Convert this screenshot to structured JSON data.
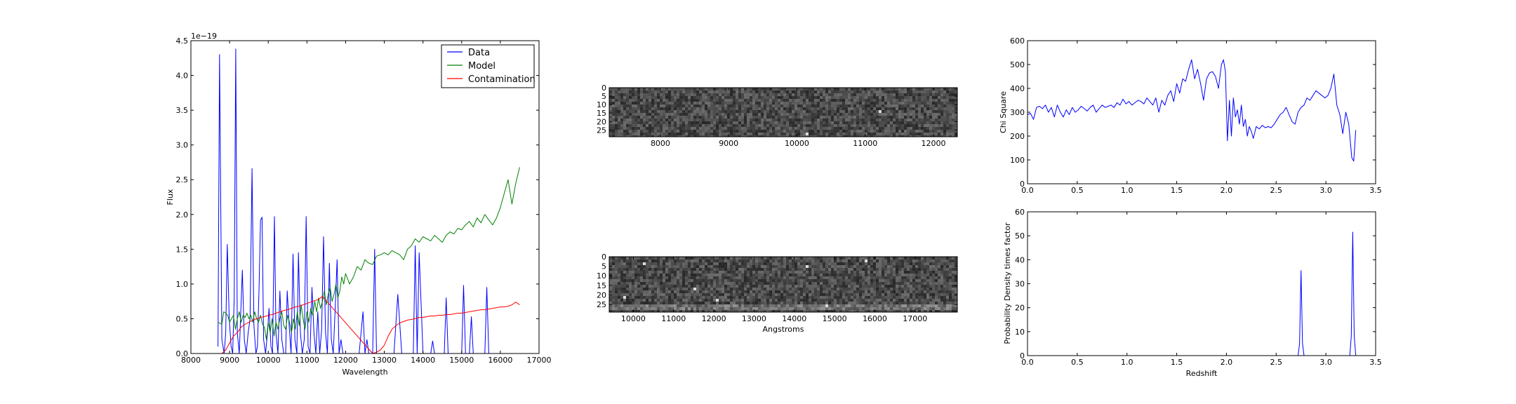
{
  "chart_data": [
    {
      "type": "line",
      "xlabel": "Wavelength",
      "ylabel": "Flux",
      "offset_text": "1e−19",
      "xlim": [
        8000,
        17000
      ],
      "ylim": [
        0,
        4.5
      ],
      "xticks": [
        "8000",
        "9000",
        "10000",
        "11000",
        "12000",
        "13000",
        "14000",
        "15000",
        "16000",
        "17000"
      ],
      "yticks": [
        "0.0",
        "0.5",
        "1.0",
        "1.5",
        "2.0",
        "2.5",
        "3.0",
        "3.5",
        "4.0",
        "4.5"
      ],
      "legend_position": "top-right",
      "series": [
        {
          "name": "Data",
          "color": "#0000ff",
          "x": [
            8700,
            8740,
            8800,
            8860,
            8900,
            8940,
            8990,
            9040,
            9080,
            9120,
            9160,
            9200,
            9250,
            9290,
            9330,
            9380,
            9430,
            9480,
            9530,
            9580,
            9630,
            9680,
            9720,
            9760,
            9800,
            9840,
            9880,
            9930,
            9980,
            10020,
            10070,
            10110,
            10160,
            10200,
            10250,
            10300,
            10350,
            10400,
            10450,
            10490,
            10540,
            10590,
            10640,
            10690,
            10740,
            10780,
            10830,
            10880,
            10930,
            10980,
            11030,
            11080,
            11130,
            11180,
            11230,
            11280,
            11330,
            11380,
            11430,
            11480,
            11530,
            11580,
            11630,
            11680,
            11730,
            11780,
            11830,
            11880,
            11930,
            11980,
            12050,
            12150,
            12250,
            12350,
            12450,
            12500,
            12550,
            12600,
            12650,
            12700,
            12750,
            12800,
            12900,
            13000,
            13100,
            13180,
            13250,
            13350,
            13450,
            13550,
            13600,
            13650,
            13700,
            13750,
            13800,
            13850,
            13900,
            14000,
            14100,
            14200,
            14250,
            14300,
            14400,
            14450,
            14500,
            14550,
            14600,
            14650,
            14700,
            14800,
            14900,
            15000,
            15050,
            15100,
            15150,
            15200,
            15250,
            15300,
            15350,
            15400,
            15450,
            15500,
            15550,
            15600,
            15650,
            15700,
            15750,
            15800,
            15900,
            16000,
            16200
          ],
          "y": [
            0.1,
            4.3,
            0.2,
            0.0,
            0.3,
            1.57,
            0.5,
            0.1,
            0.0,
            0.8,
            4.38,
            0.3,
            0.0,
            0.6,
            1.2,
            0.2,
            0.0,
            0.3,
            0.5,
            2.66,
            0.4,
            0.0,
            0.1,
            0.9,
            1.92,
            1.96,
            0.2,
            0.0,
            0.3,
            0.65,
            0.1,
            0.0,
            1.97,
            0.3,
            0.0,
            0.9,
            0.2,
            0.0,
            0.0,
            0.9,
            0.4,
            0.0,
            1.43,
            0.2,
            0.0,
            1.45,
            0.3,
            0.0,
            0.2,
            1.97,
            0.1,
            0.0,
            0.95,
            0.3,
            0.0,
            0.6,
            0.0,
            0.35,
            1.68,
            0.3,
            0.0,
            1.3,
            0.2,
            0.0,
            0.65,
            1.35,
            0.0,
            0.2,
            0.0,
            0.0,
            0.0,
            0.0,
            0.0,
            0.0,
            0.6,
            0.0,
            0.2,
            0.0,
            0.0,
            0.0,
            1.5,
            0.0,
            0.0,
            0.0,
            0.0,
            0.0,
            0.0,
            0.85,
            0.0,
            0.0,
            0.0,
            0.0,
            0.0,
            0.0,
            1.55,
            0.0,
            1.45,
            0.0,
            0.0,
            0.0,
            0.18,
            0.0,
            0.0,
            0.0,
            0.0,
            0.0,
            0.8,
            0.0,
            0.0,
            0.0,
            0.0,
            0.0,
            0.98,
            0.0,
            0.0,
            0.0,
            0.53,
            0.0,
            0.0,
            0.0,
            0.0,
            0.0,
            0.0,
            0.0,
            0.95,
            0.0,
            0.0,
            0.0,
            0.0,
            0.0,
            0.0
          ]
        },
        {
          "name": "Model",
          "color": "#008000",
          "x": [
            8700,
            8800,
            8850,
            8900,
            8950,
            9000,
            9050,
            9100,
            9150,
            9200,
            9250,
            9300,
            9350,
            9400,
            9450,
            9500,
            9550,
            9600,
            9650,
            9700,
            9750,
            9800,
            9850,
            9900,
            9950,
            10000,
            10050,
            10100,
            10150,
            10200,
            10250,
            10300,
            10350,
            10400,
            10450,
            10500,
            10550,
            10600,
            10650,
            10700,
            10750,
            10800,
            10850,
            10900,
            10950,
            11000,
            11050,
            11100,
            11150,
            11200,
            11250,
            11300,
            11350,
            11400,
            11450,
            11500,
            11550,
            11600,
            11650,
            11700,
            11750,
            11800,
            11850,
            11900,
            11950,
            12000,
            12100,
            12200,
            12300,
            12400,
            12500,
            12600,
            12700,
            12800,
            12900,
            13000,
            13100,
            13200,
            13300,
            13400,
            13500,
            13600,
            13700,
            13800,
            13900,
            14000,
            14100,
            14200,
            14300,
            14400,
            14500,
            14600,
            14700,
            14800,
            14900,
            15000,
            15100,
            15200,
            15300,
            15400,
            15500,
            15600,
            15700,
            15800,
            15900,
            16000,
            16100,
            16200,
            16300,
            16400,
            16500
          ],
          "y": [
            0.45,
            0.42,
            0.6,
            0.58,
            0.55,
            0.45,
            0.5,
            0.55,
            0.35,
            0.5,
            0.6,
            0.45,
            0.55,
            0.52,
            0.58,
            0.5,
            0.55,
            0.45,
            0.6,
            0.5,
            0.45,
            0.55,
            0.42,
            0.38,
            0.2,
            0.45,
            0.3,
            0.5,
            0.25,
            0.45,
            0.35,
            0.5,
            0.6,
            0.4,
            0.35,
            0.55,
            0.45,
            0.3,
            0.5,
            0.35,
            0.6,
            0.4,
            0.7,
            0.5,
            0.35,
            0.6,
            0.45,
            0.65,
            0.55,
            0.75,
            0.6,
            0.8,
            0.65,
            0.75,
            0.9,
            0.7,
            0.85,
            0.95,
            0.75,
            0.85,
            1.0,
            0.8,
            0.9,
            1.1,
            1.0,
            1.15,
            1.0,
            1.1,
            1.25,
            1.2,
            1.35,
            1.3,
            1.28,
            1.4,
            1.42,
            1.45,
            1.42,
            1.48,
            1.45,
            1.42,
            1.35,
            1.5,
            1.55,
            1.65,
            1.6,
            1.68,
            1.65,
            1.62,
            1.7,
            1.65,
            1.6,
            1.7,
            1.75,
            1.72,
            1.8,
            1.78,
            1.85,
            1.9,
            1.82,
            1.95,
            1.88,
            2.0,
            1.92,
            1.85,
            1.95,
            2.1,
            2.3,
            2.5,
            2.15,
            2.45,
            2.68
          ]
        },
        {
          "name": "Contamination",
          "color": "#ff0000",
          "x": [
            8800,
            8900,
            9000,
            9100,
            9200,
            9300,
            9400,
            9500,
            9600,
            9700,
            9800,
            9900,
            10000,
            10100,
            10200,
            10300,
            10400,
            10500,
            10600,
            10700,
            10800,
            10900,
            11000,
            11100,
            11200,
            11300,
            11400,
            12700,
            12800,
            12900,
            13000,
            13100,
            13200,
            13300,
            13400,
            13500,
            13600,
            13700,
            13800,
            13900,
            14000,
            14100,
            14200,
            14300,
            14400,
            14500,
            14600,
            14700,
            14800,
            14900,
            15000,
            15100,
            15200,
            15300,
            15400,
            15500,
            15600,
            15700,
            15800,
            15900,
            16000,
            16100,
            16200,
            16300,
            16400,
            16500
          ],
          "y": [
            0.0,
            0.05,
            0.15,
            0.25,
            0.3,
            0.38,
            0.42,
            0.45,
            0.48,
            0.5,
            0.52,
            0.53,
            0.55,
            0.56,
            0.58,
            0.6,
            0.62,
            0.63,
            0.65,
            0.67,
            0.68,
            0.7,
            0.72,
            0.74,
            0.76,
            0.78,
            0.82,
            0.0,
            0.02,
            0.05,
            0.12,
            0.25,
            0.35,
            0.4,
            0.44,
            0.46,
            0.48,
            0.49,
            0.5,
            0.52,
            0.52,
            0.53,
            0.54,
            0.54,
            0.55,
            0.55,
            0.56,
            0.56,
            0.57,
            0.58,
            0.58,
            0.59,
            0.6,
            0.61,
            0.62,
            0.63,
            0.63,
            0.64,
            0.65,
            0.66,
            0.67,
            0.67,
            0.68,
            0.7,
            0.74,
            0.7
          ]
        }
      ]
    },
    {
      "type": "heatmap",
      "xlim": [
        7250,
        12350
      ],
      "ylim": [
        0,
        29
      ],
      "xticks": [
        "8000",
        "9000",
        "10000",
        "11000",
        "12000"
      ],
      "yticks": [
        "0",
        "5",
        "10",
        "15",
        "20",
        "25"
      ]
    },
    {
      "type": "heatmap",
      "xlabel": "Angstroms",
      "xlim": [
        9400,
        18050
      ],
      "ylim": [
        0,
        29
      ],
      "xticks": [
        "10000",
        "11000",
        "12000",
        "13000",
        "14000",
        "15000",
        "16000",
        "17000"
      ],
      "yticks": [
        "0",
        "5",
        "10",
        "15",
        "20",
        "25"
      ]
    },
    {
      "type": "line",
      "ylabel": "Chi Square",
      "xlim": [
        0,
        3.5
      ],
      "ylim": [
        0,
        600
      ],
      "xticks": [
        "0.0",
        "0.5",
        "1.0",
        "1.5",
        "2.0",
        "2.5",
        "3.0",
        "3.5"
      ],
      "yticks": [
        "0",
        "100",
        "200",
        "300",
        "400",
        "500",
        "600"
      ],
      "series": [
        {
          "color": "#0000ff",
          "x": [
            0.0,
            0.03,
            0.06,
            0.09,
            0.12,
            0.15,
            0.18,
            0.21,
            0.24,
            0.27,
            0.3,
            0.33,
            0.36,
            0.39,
            0.42,
            0.45,
            0.48,
            0.51,
            0.54,
            0.57,
            0.6,
            0.63,
            0.66,
            0.69,
            0.72,
            0.75,
            0.78,
            0.81,
            0.84,
            0.87,
            0.9,
            0.93,
            0.96,
            0.99,
            1.02,
            1.05,
            1.08,
            1.11,
            1.14,
            1.17,
            1.2,
            1.23,
            1.26,
            1.29,
            1.32,
            1.35,
            1.38,
            1.41,
            1.44,
            1.47,
            1.5,
            1.53,
            1.56,
            1.59,
            1.62,
            1.65,
            1.68,
            1.71,
            1.74,
            1.77,
            1.8,
            1.83,
            1.86,
            1.89,
            1.92,
            1.95,
            1.97,
            1.99,
            2.01,
            2.03,
            2.05,
            2.07,
            2.09,
            2.11,
            2.13,
            2.15,
            2.17,
            2.19,
            2.21,
            2.23,
            2.25,
            2.27,
            2.3,
            2.33,
            2.36,
            2.39,
            2.42,
            2.45,
            2.48,
            2.51,
            2.54,
            2.57,
            2.6,
            2.63,
            2.66,
            2.69,
            2.72,
            2.75,
            2.78,
            2.81,
            2.84,
            2.87,
            2.9,
            2.93,
            2.96,
            2.99,
            3.02,
            3.05,
            3.08,
            3.11,
            3.14,
            3.17,
            3.2,
            3.23,
            3.26,
            3.28,
            3.3
          ],
          "y": [
            290,
            295,
            270,
            320,
            325,
            315,
            330,
            300,
            320,
            280,
            330,
            300,
            280,
            310,
            290,
            320,
            300,
            310,
            325,
            315,
            305,
            320,
            330,
            300,
            315,
            330,
            320,
            325,
            330,
            320,
            340,
            330,
            355,
            335,
            345,
            330,
            340,
            350,
            345,
            335,
            360,
            345,
            330,
            360,
            300,
            350,
            330,
            370,
            390,
            345,
            420,
            380,
            440,
            430,
            480,
            520,
            440,
            480,
            420,
            350,
            440,
            465,
            470,
            450,
            400,
            500,
            520,
            470,
            180,
            350,
            200,
            360,
            280,
            310,
            250,
            330,
            240,
            270,
            200,
            240,
            220,
            190,
            240,
            230,
            245,
            235,
            240,
            235,
            250,
            270,
            290,
            300,
            320,
            290,
            260,
            250,
            300,
            320,
            330,
            360,
            350,
            370,
            390,
            380,
            370,
            360,
            370,
            400,
            460,
            330,
            290,
            210,
            300,
            250,
            110,
            95,
            225
          ]
        }
      ]
    },
    {
      "type": "line",
      "xlabel": "Redshift",
      "ylabel": "Probability Density times factor",
      "xlim": [
        0,
        3.5
      ],
      "ylim": [
        0,
        60
      ],
      "xticks": [
        "0.0",
        "0.5",
        "1.0",
        "1.5",
        "2.0",
        "2.5",
        "3.0",
        "3.5"
      ],
      "yticks": [
        "0",
        "10",
        "20",
        "30",
        "40",
        "50",
        "60"
      ],
      "series": [
        {
          "color": "#0000ff",
          "x": [
            0.0,
            2.72,
            2.735,
            2.75,
            2.765,
            2.78,
            3.24,
            3.255,
            3.27,
            3.285,
            3.3
          ],
          "y": [
            0,
            0,
            5,
            35.5,
            5,
            0,
            0,
            8,
            51.5,
            8,
            0
          ]
        }
      ]
    }
  ]
}
